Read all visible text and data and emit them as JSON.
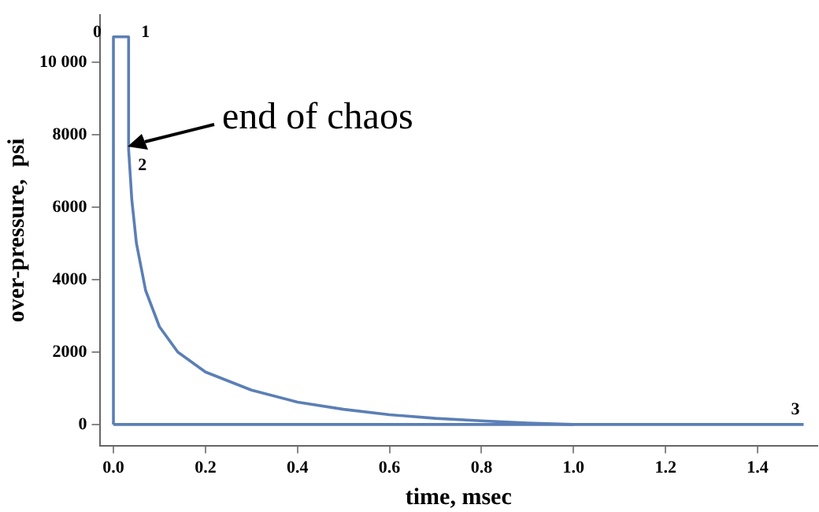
{
  "chart_data": {
    "type": "line",
    "xlabel": "time, msec",
    "ylabel": "over-pressure,  psi",
    "series": [
      {
        "color": "#5b7fb5",
        "x": [
          0,
          0,
          0.033,
          0.033,
          0.04,
          0.05,
          0.07,
          0.1,
          0.14,
          0.2,
          0.3,
          0.4,
          0.5,
          0.6,
          0.7,
          0.8,
          0.9,
          1.0
        ],
        "values": [
          0,
          10700,
          10700,
          7600,
          6200,
          5000,
          3700,
          2700,
          2000,
          1450,
          950,
          620,
          420,
          270,
          170,
          100,
          40,
          0
        ]
      },
      {
        "color": "#5b7fb5",
        "x": [
          0,
          1.5
        ],
        "values": [
          0,
          0
        ]
      }
    ],
    "xlim": [
      -0.03,
      1.53
    ],
    "ylim": [
      -580,
      11300
    ],
    "xticks": [
      {
        "value": 0,
        "label": "0.0"
      },
      {
        "value": 0.2,
        "label": "0.2"
      },
      {
        "value": 0.4,
        "label": "0.4"
      },
      {
        "value": 0.6,
        "label": "0.6"
      },
      {
        "value": 0.8,
        "label": "0.8"
      },
      {
        "value": 1.0,
        "label": "1.0"
      },
      {
        "value": 1.2,
        "label": "1.2"
      },
      {
        "value": 1.4,
        "label": "1.4"
      }
    ],
    "yticks": [
      0,
      2000,
      4000,
      6000,
      8000,
      {
        "value": 10000,
        "label": "10 000"
      }
    ],
    "grid": false,
    "legend": false,
    "marker": "none",
    "line_style": "solid",
    "annotations": [
      {
        "text": "0",
        "x": 0,
        "y": 10700
      },
      {
        "text": "1",
        "x": 0.033,
        "y": 10700
      },
      {
        "text": "2",
        "x": 0.033,
        "y": 7600
      },
      {
        "text": "3",
        "x": 1.5,
        "y": 0
      },
      "end of chaos"
    ]
  }
}
